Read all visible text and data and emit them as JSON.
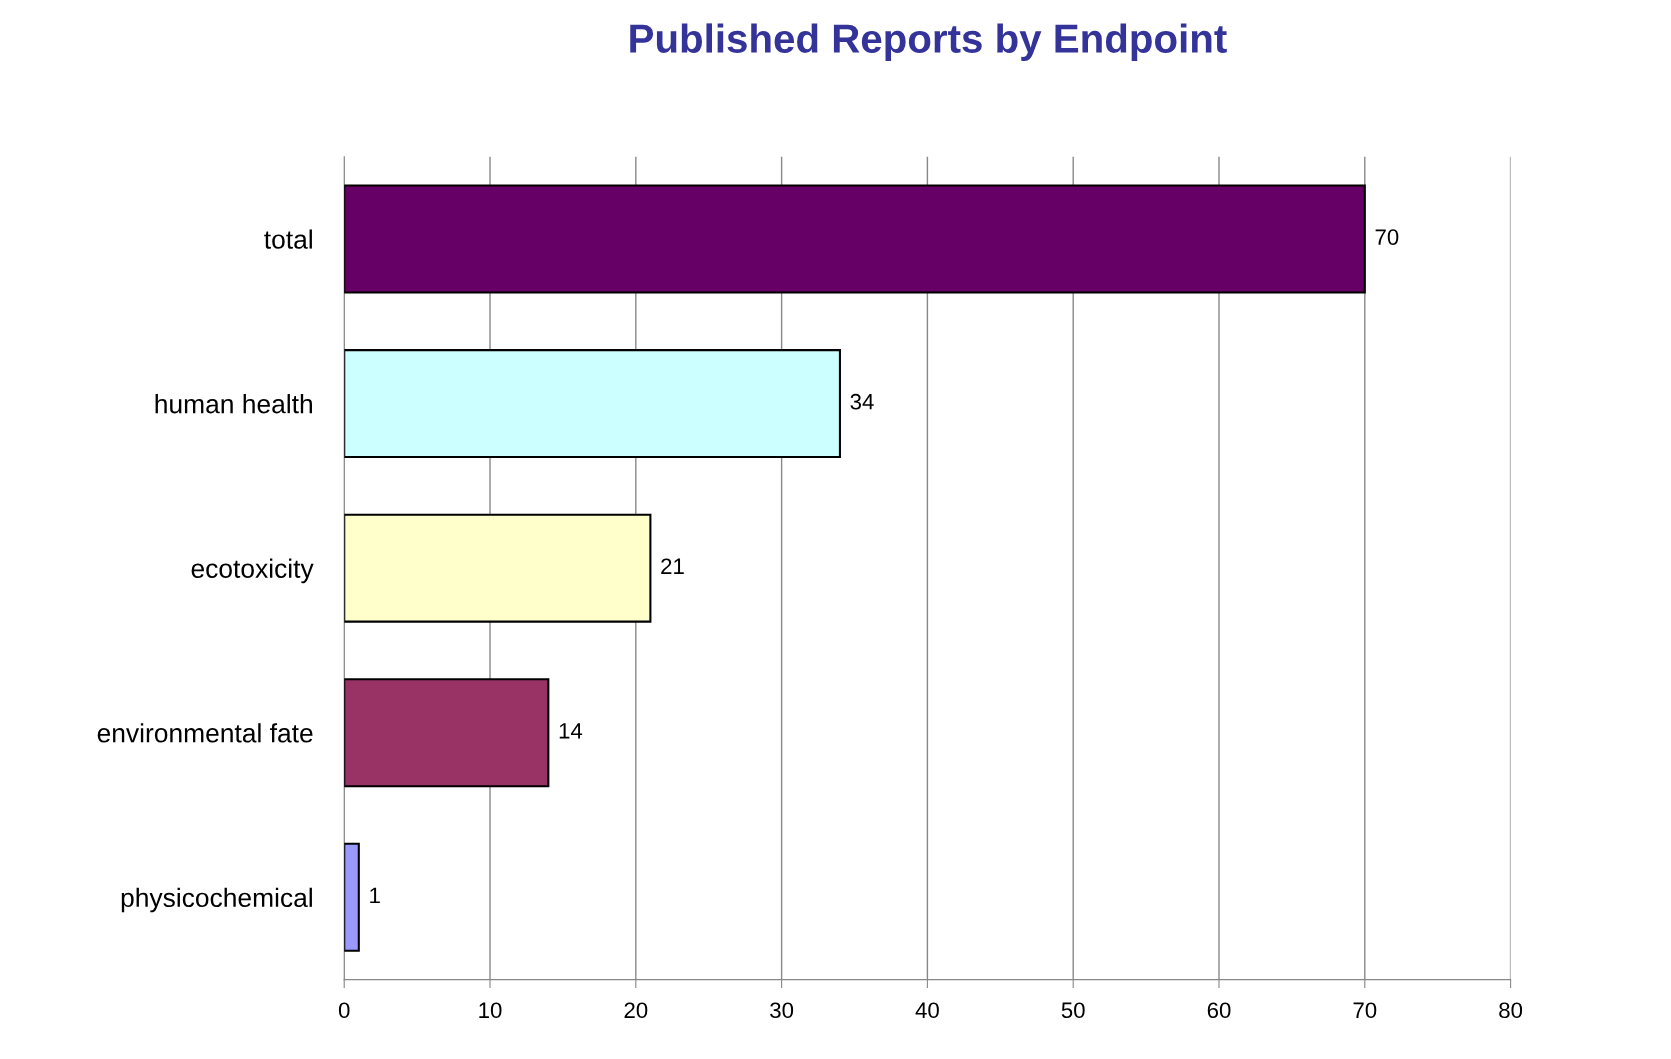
{
  "chart_data": {
    "type": "bar",
    "orientation": "horizontal",
    "title": "Published Reports by Endpoint",
    "categories": [
      "total",
      "human health",
      "ecotoxicity",
      "environmental fate",
      "physicochemical"
    ],
    "values": [
      70,
      34,
      21,
      14,
      1
    ],
    "colors": [
      "#660066",
      "#ccffff",
      "#ffffcc",
      "#993366",
      "#9999ff"
    ],
    "xlim": [
      0,
      80
    ],
    "xticks": [
      0,
      10,
      20,
      30,
      40,
      50,
      60,
      70,
      80
    ],
    "grid": "x",
    "data_labels": true
  }
}
